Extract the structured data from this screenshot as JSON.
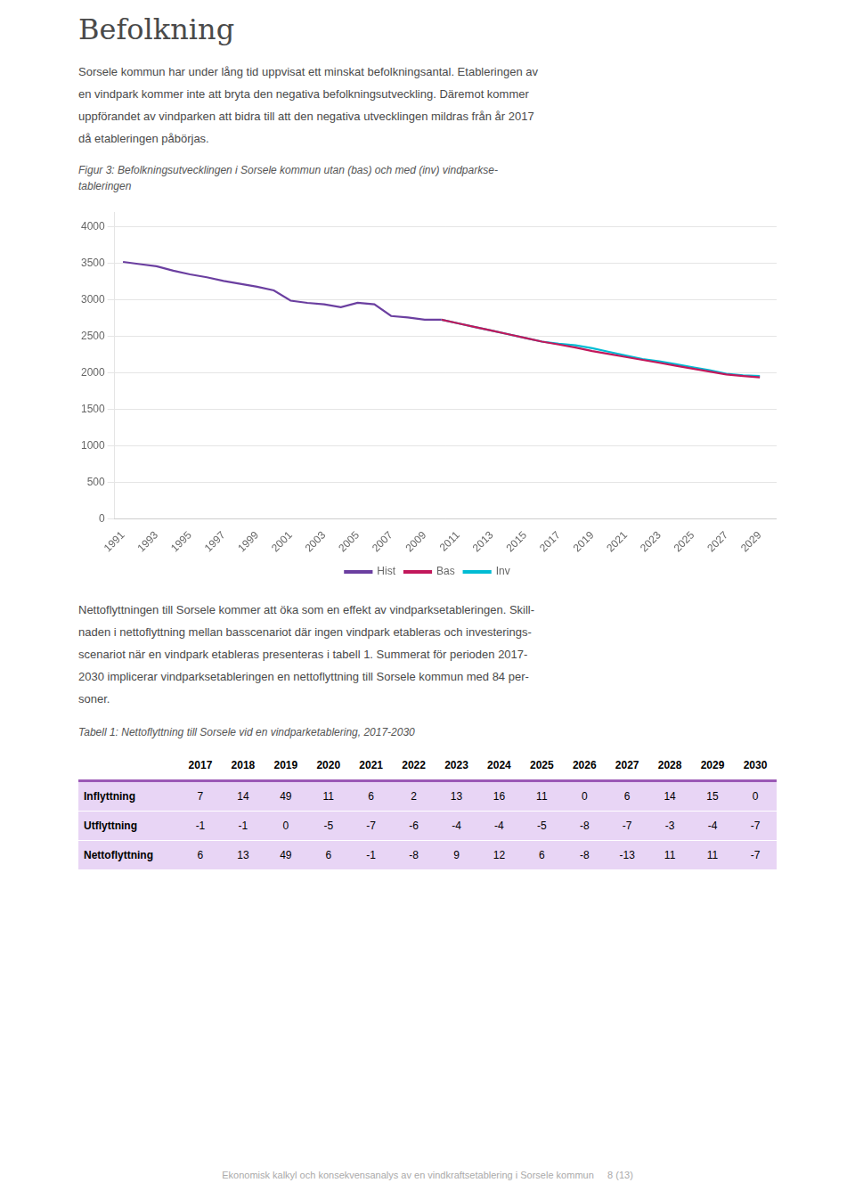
{
  "page": {
    "title": "Befolkning",
    "body_text1_lines": [
      "Sorsele kommun har under lång tid uppvisat ett minskat befolkningsantal. Etableringen av",
      "en vindpark kommer inte att bryta den negativa befolkningsutveckling. Däremot kommer",
      "uppförandet av vindparken att bidra till att den negativa utvecklingen mildras från år 2017",
      "då etableringen påbörjas."
    ],
    "caption_fig_lines": [
      "Figur 3: Befolkningsutvecklingen i Sorsele kommun utan (bas) och med (inv) vindparkse-",
      "tableringen"
    ],
    "body_text2_lines": [
      "Nettoflyttningen till Sorsele kommer att öka som en effekt av vindparksetableringen. Skill-",
      "naden i nettoflyttning mellan basscenariot där ingen vindpark etableras och investerings-",
      "scenariot när en vindpark etableras presenteras i tabell 1. Summerat för perioden 2017-",
      "2030 implicerar vindparksetableringen en nettoflyttning till Sorsele kommun med 84 per-",
      "soner."
    ],
    "caption_table": "Tabell 1: Nettoflyttning till Sorsele vid en vindparketablering, 2017-2030",
    "table": {
      "columns": [
        2017,
        2018,
        2019,
        2020,
        2021,
        2022,
        2023,
        2024,
        2025,
        2026,
        2027,
        2028,
        2029,
        2030
      ],
      "rows": [
        {
          "label": "Inflyttning",
          "values": [
            7,
            14,
            49,
            11,
            6,
            2,
            13,
            16,
            11,
            0,
            6,
            14,
            15,
            0
          ]
        },
        {
          "label": "Utflyttning",
          "values": [
            -1,
            -1,
            0,
            -5,
            -7,
            -6,
            -4,
            -4,
            -5,
            -8,
            -7,
            -3,
            -4,
            -7
          ]
        },
        {
          "label": "Nettoflyttning",
          "values": [
            6,
            13,
            49,
            6,
            -1,
            -8,
            9,
            12,
            6,
            -8,
            -13,
            11,
            11,
            -7
          ]
        }
      ],
      "header_line_color": "#9B59B6",
      "row_bg": "#E8D5F5"
    },
    "footer_text": "Ekonomisk kalkyl och konsekvensanalys av en vindkraftsetablering i Sorsele kommun     8 (13)"
  },
  "chart_data": {
    "type": "line",
    "series": [
      {
        "name": "Hist",
        "color": "#6B3FA0",
        "x": [
          1991,
          1992,
          1993,
          1994,
          1995,
          1996,
          1997,
          1998,
          1999,
          2000,
          2001,
          2002,
          2003,
          2004,
          2005,
          2006,
          2007,
          2008,
          2009,
          2010
        ],
        "values": [
          3520,
          3490,
          3460,
          3400,
          3350,
          3310,
          3260,
          3220,
          3180,
          3130,
          2990,
          2960,
          2940,
          2900,
          2960,
          2940,
          2780,
          2760,
          2730,
          2730
        ]
      },
      {
        "name": "Bas",
        "color": "#C2185B",
        "x": [
          2010,
          2011,
          2012,
          2013,
          2014,
          2015,
          2016,
          2017,
          2018,
          2019,
          2020,
          2021,
          2022,
          2023,
          2024,
          2025,
          2026,
          2027,
          2028,
          2029
        ],
        "values": [
          2730,
          2680,
          2630,
          2580,
          2530,
          2480,
          2430,
          2390,
          2350,
          2300,
          2260,
          2220,
          2180,
          2140,
          2100,
          2060,
          2020,
          1980,
          1960,
          1940
        ]
      },
      {
        "name": "Inv",
        "color": "#00BCD4",
        "x": [
          2010,
          2011,
          2012,
          2013,
          2014,
          2015,
          2016,
          2017,
          2018,
          2019,
          2020,
          2021,
          2022,
          2023,
          2024,
          2025,
          2026,
          2027,
          2028,
          2029
        ],
        "values": [
          2730,
          2680,
          2630,
          2580,
          2530,
          2480,
          2430,
          2400,
          2380,
          2340,
          2290,
          2240,
          2190,
          2160,
          2120,
          2080,
          2040,
          1990,
          1970,
          1960
        ]
      }
    ],
    "xlim": [
      1990.5,
      2030
    ],
    "xticks": [
      1991,
      1993,
      1995,
      1997,
      1999,
      2001,
      2003,
      2005,
      2007,
      2009,
      2011,
      2013,
      2015,
      2017,
      2019,
      2021,
      2023,
      2025,
      2027,
      2029
    ],
    "ylim": [
      0,
      4200
    ],
    "yticks": [
      0,
      500,
      1000,
      1500,
      2000,
      2500,
      3000,
      3500,
      4000
    ],
    "grid": "y",
    "legend": "bottom"
  }
}
